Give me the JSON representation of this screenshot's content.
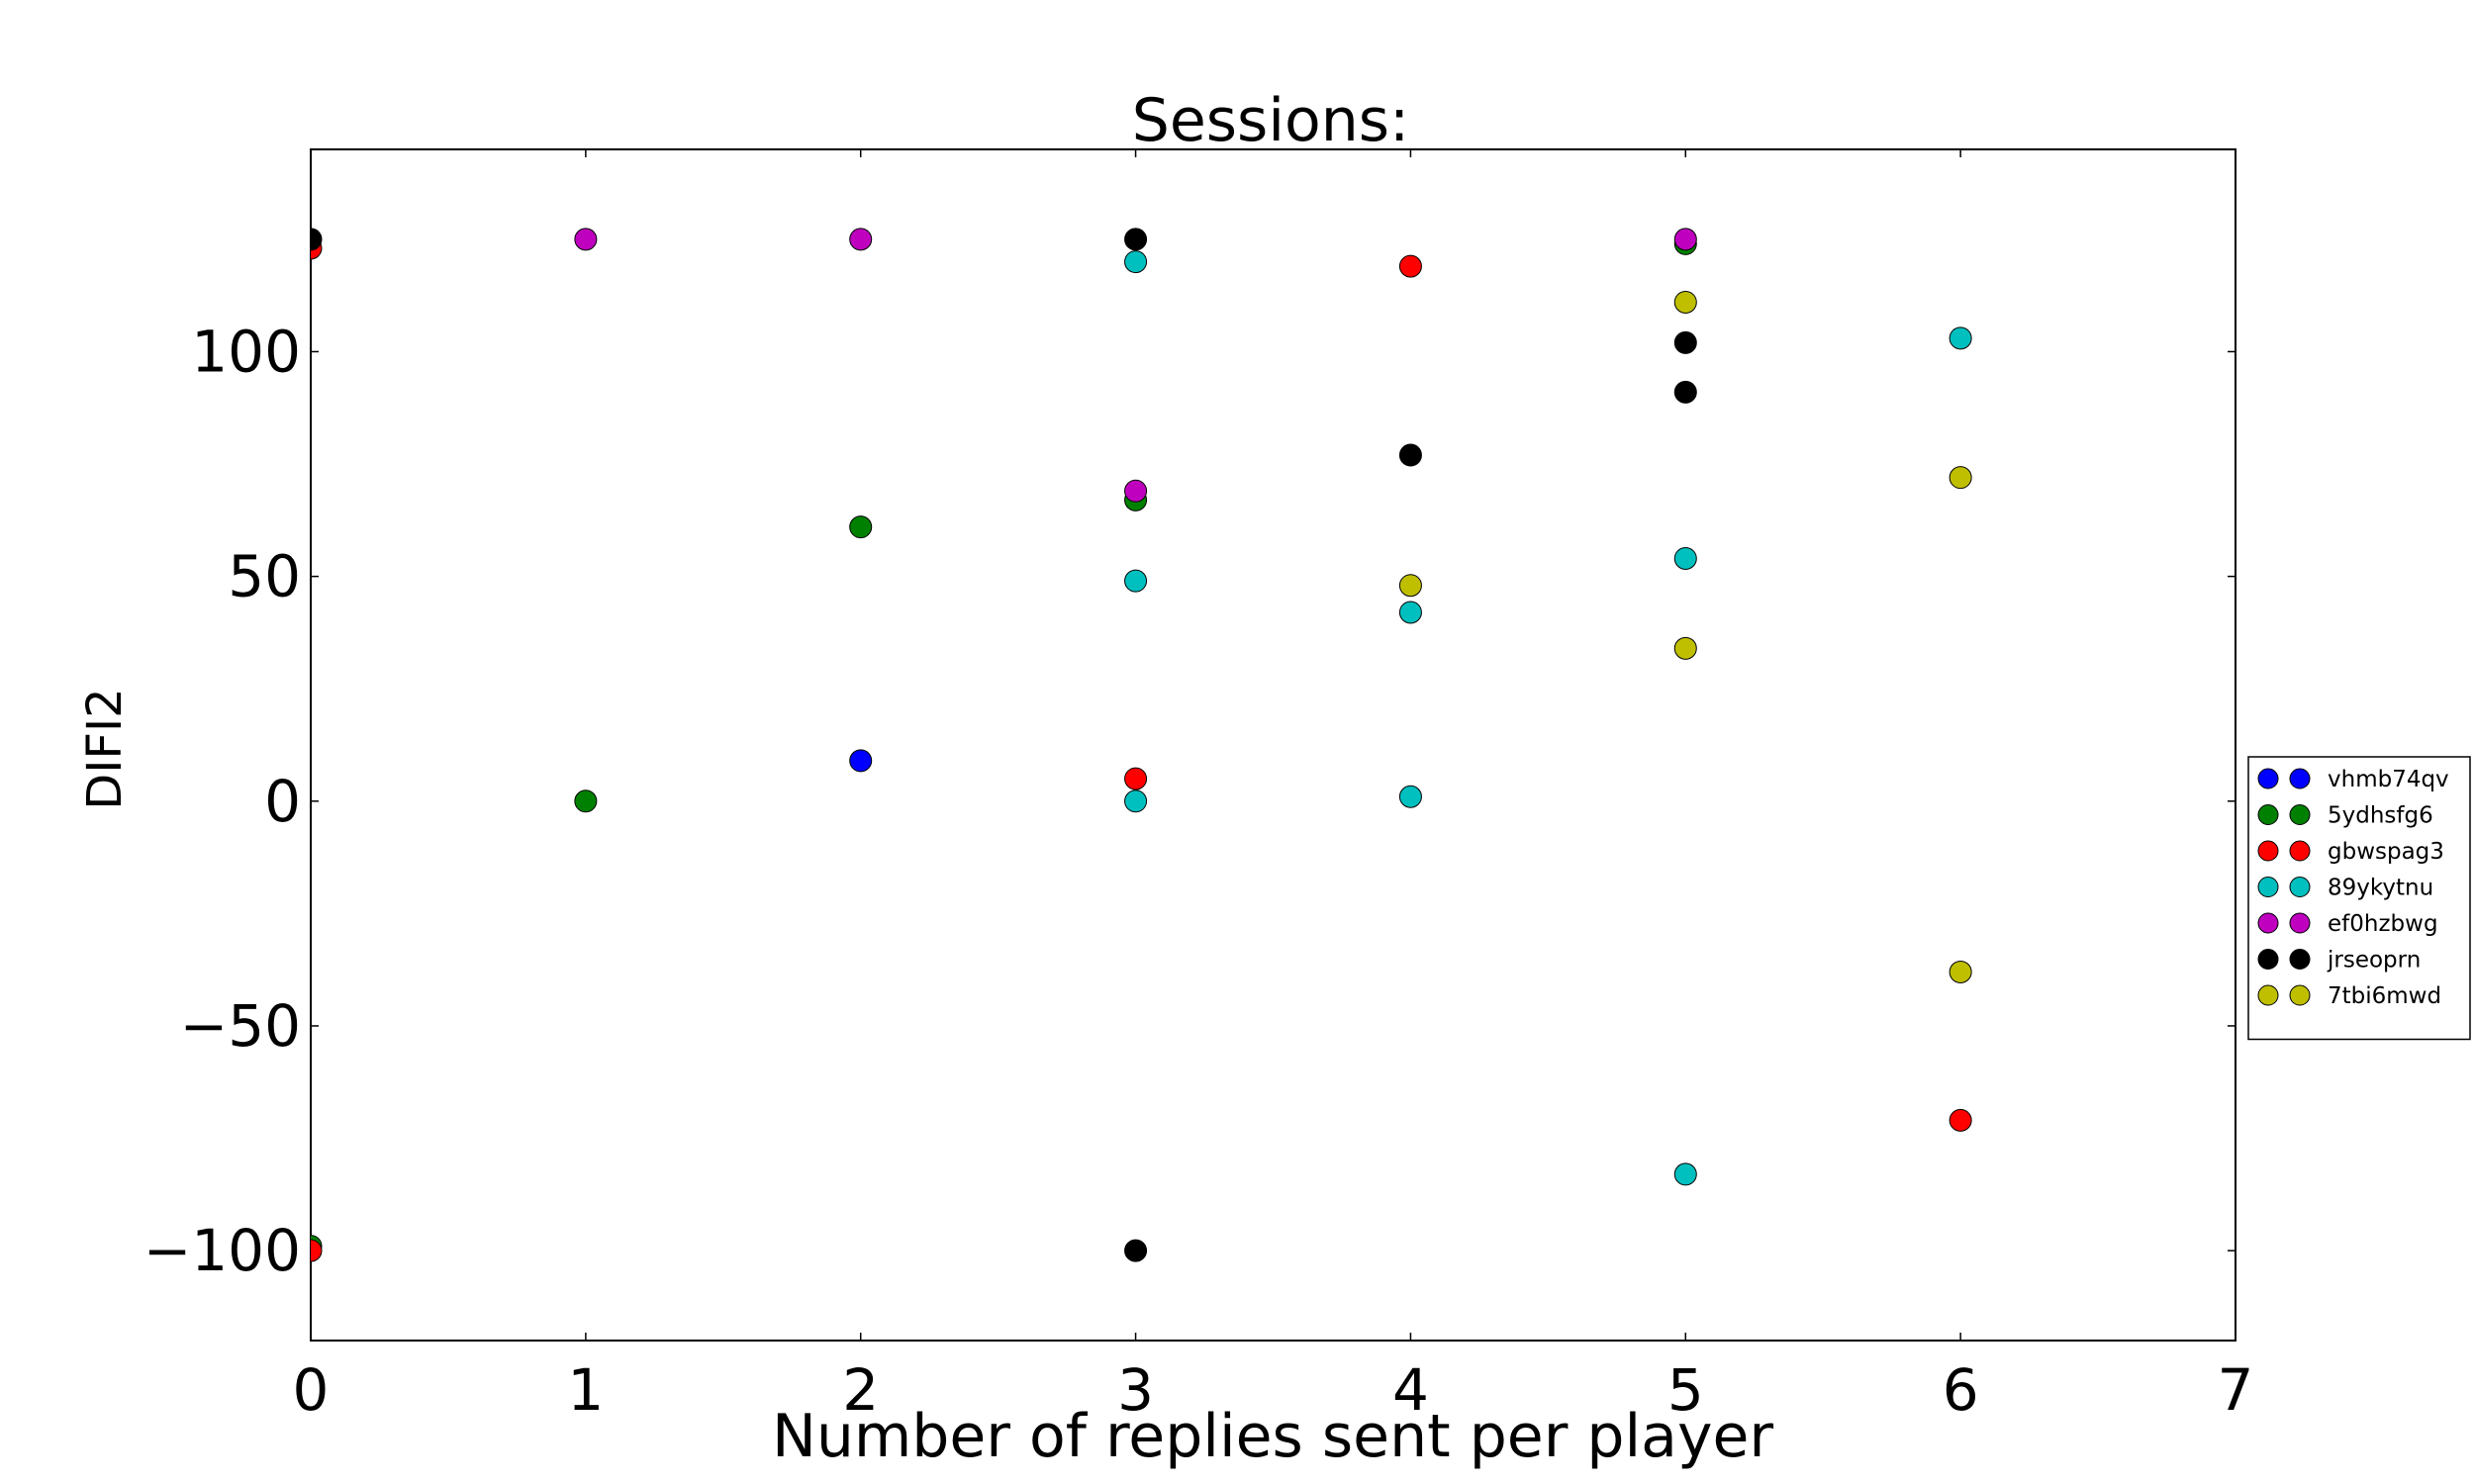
{
  "chart_data": {
    "type": "scatter",
    "title": "Sessions:",
    "xlabel": "Number of replies sent per player",
    "ylabel": "DIFI2",
    "xlim": [
      0,
      7
    ],
    "ylim": [
      -120,
      145
    ],
    "xticks": [
      0,
      1,
      2,
      3,
      4,
      5,
      6,
      7
    ],
    "yticks": [
      -100,
      -50,
      0,
      50,
      100
    ],
    "grid": false,
    "legend_position": "right",
    "series": [
      {
        "name": "vhmb74qv",
        "color": "#0000ff",
        "points": [
          [
            2,
            9
          ]
        ]
      },
      {
        "name": "5ydhsfg6",
        "color": "#008000",
        "points": [
          [
            0,
            -99
          ],
          [
            1,
            0
          ],
          [
            2,
            61
          ],
          [
            3,
            67
          ],
          [
            5,
            124
          ]
        ]
      },
      {
        "name": "gbwspag3",
        "color": "#ff0000",
        "points": [
          [
            0,
            123
          ],
          [
            0,
            -100
          ],
          [
            3,
            5
          ],
          [
            4,
            119
          ],
          [
            6,
            -71
          ]
        ]
      },
      {
        "name": "89ykytnu",
        "color": "#00bfbf",
        "points": [
          [
            3,
            120
          ],
          [
            3,
            49
          ],
          [
            3,
            0
          ],
          [
            4,
            42
          ],
          [
            4,
            1
          ],
          [
            5,
            54
          ],
          [
            5,
            -83
          ],
          [
            6,
            103
          ]
        ]
      },
      {
        "name": "ef0hzbwg",
        "color": "#bf00bf",
        "points": [
          [
            1,
            125
          ],
          [
            2,
            125
          ],
          [
            3,
            69
          ],
          [
            5,
            125
          ]
        ]
      },
      {
        "name": "jrseoprn",
        "color": "#000000",
        "points": [
          [
            0,
            125
          ],
          [
            3,
            125
          ],
          [
            3,
            -100
          ],
          [
            4,
            77
          ],
          [
            5,
            102
          ],
          [
            5,
            91
          ]
        ]
      },
      {
        "name": "7tbi6mwd",
        "color": "#bfbf00",
        "points": [
          [
            4,
            48
          ],
          [
            5,
            111
          ],
          [
            5,
            34
          ],
          [
            6,
            72
          ],
          [
            6,
            -38
          ]
        ]
      }
    ]
  }
}
